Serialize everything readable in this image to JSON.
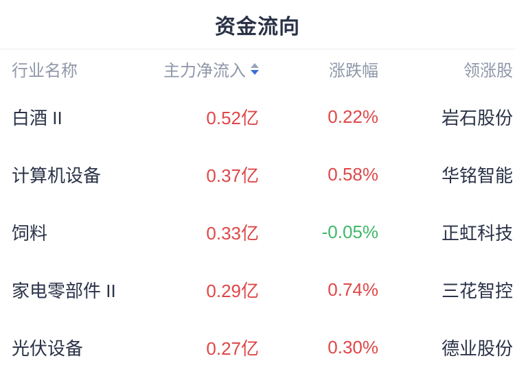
{
  "title": "资金流向",
  "colors": {
    "text_dark": "#2a3247",
    "header_gray": "#8f97a8",
    "positive_red": "#de4748",
    "negative_green": "#3eb869",
    "sort_arrow_active_blue": "#3a6fd8",
    "sort_arrow_inactive_gray": "#9aa5bc",
    "divider": "#ebedf0",
    "background": "#ffffff"
  },
  "table": {
    "columns": [
      {
        "label": "行业名称",
        "align": "left"
      },
      {
        "label": "主力净流入",
        "align": "right",
        "sortable": true,
        "sort_state": "descending"
      },
      {
        "label": "涨跌幅",
        "align": "right"
      },
      {
        "label": "领涨股",
        "align": "right"
      }
    ],
    "rows": [
      {
        "industry": "白酒 II",
        "inflow": "0.52亿",
        "change": "0.22%",
        "change_dir": "up",
        "leader": "岩石股份"
      },
      {
        "industry": "计算机设备",
        "inflow": "0.37亿",
        "change": "0.58%",
        "change_dir": "up",
        "leader": "华铭智能"
      },
      {
        "industry": "饲料",
        "inflow": "0.33亿",
        "change": "-0.05%",
        "change_dir": "down",
        "leader": "正虹科技"
      },
      {
        "industry": "家电零部件 II",
        "inflow": "0.29亿",
        "change": "0.74%",
        "change_dir": "up",
        "leader": "三花智控"
      },
      {
        "industry": "光伏设备",
        "inflow": "0.27亿",
        "change": "0.30%",
        "change_dir": "up",
        "leader": "德业股份"
      }
    ]
  }
}
